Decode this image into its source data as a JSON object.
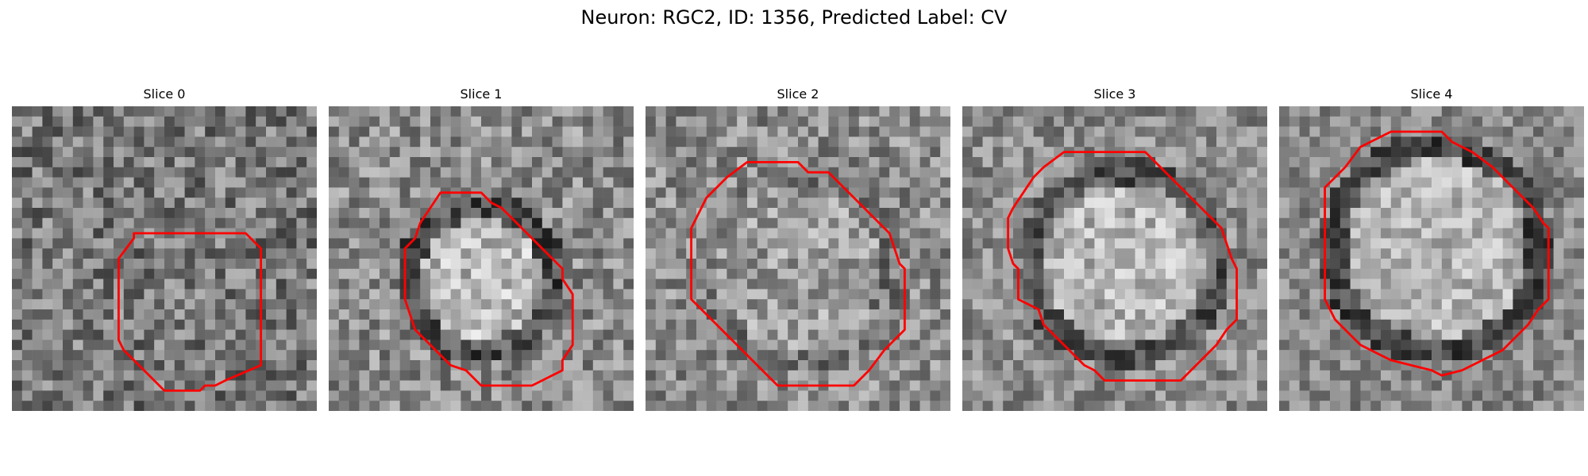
{
  "figure": {
    "title": "Neuron: RGC2, ID: 1356, Predicted Label: CV"
  },
  "panels": [
    {
      "title": "Slice 0"
    },
    {
      "title": "Slice 1"
    },
    {
      "title": "Slice 2"
    },
    {
      "title": "Slice 3"
    },
    {
      "title": "Slice 4"
    }
  ],
  "colors": {
    "contour": "#ff0000",
    "background": "#ffffff"
  }
}
